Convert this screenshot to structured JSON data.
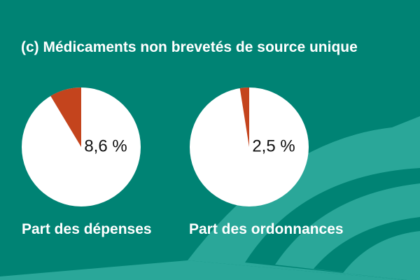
{
  "title": "(c) Médicaments non brevetés de source unique",
  "colors": {
    "background": "#008374",
    "band": "#2aa799",
    "pie": "#ffffff",
    "slice": "#c4441d",
    "text": "#ffffff",
    "label_text": "#111111"
  },
  "chart_data": [
    {
      "type": "pie",
      "title": "Part des dépenses",
      "value": 8.6,
      "unit": "%",
      "value_label": "8,6 %",
      "caption": "Part des dépenses"
    },
    {
      "type": "pie",
      "title": "Part des ordonnances",
      "value": 2.5,
      "unit": "%",
      "value_label": "2,5 %",
      "caption": "Part des ordonnances"
    }
  ]
}
